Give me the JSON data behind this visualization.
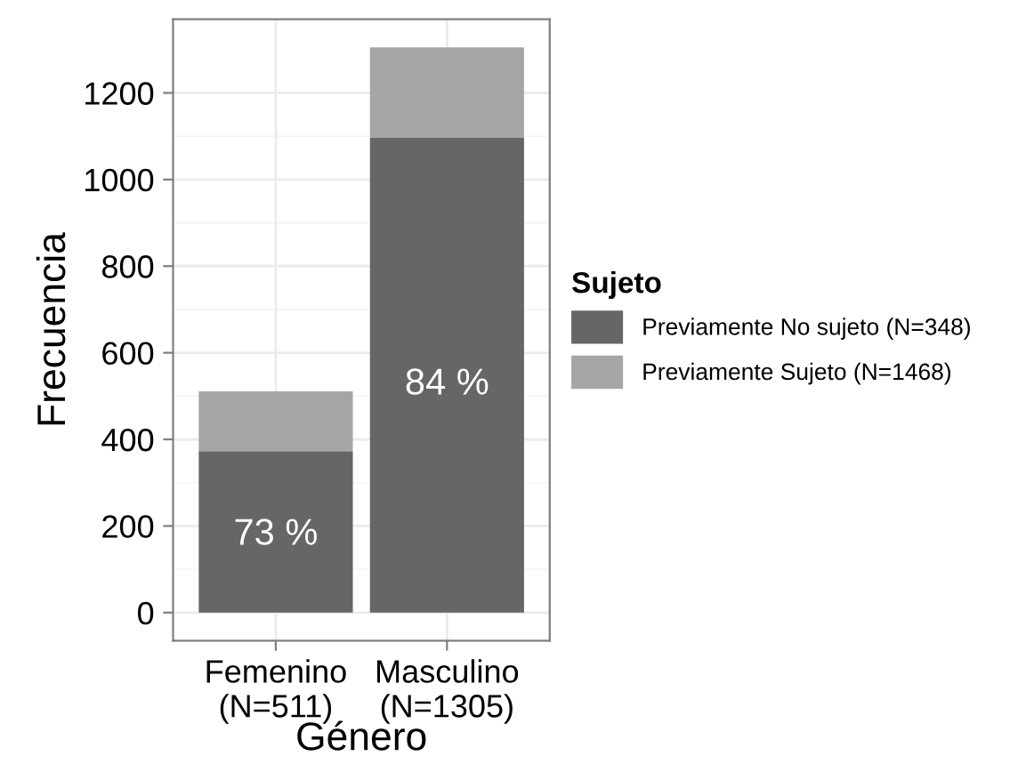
{
  "chart_data": {
    "type": "bar",
    "stacked": true,
    "xlabel": "Género",
    "ylabel": "Frecuencia",
    "legend_title": "Sujeto",
    "legend": "right",
    "categories": [
      "Femenino\n(N=511)",
      "Masculino\n(N=1305)"
    ],
    "series": [
      {
        "name": "Previamente No sujeto (N=348)",
        "color": "#666666",
        "values": [
          373,
          1096
        ]
      },
      {
        "name": "Previamente Sujeto (N=1468)",
        "color": "#a6a6a6",
        "values": [
          138,
          209
        ]
      }
    ],
    "ylim": [
      -65,
      1370
    ],
    "yticks": [
      0,
      200,
      400,
      600,
      800,
      1000,
      1200
    ],
    "grid": true,
    "annotations": [
      "73 %",
      "84 %"
    ]
  }
}
